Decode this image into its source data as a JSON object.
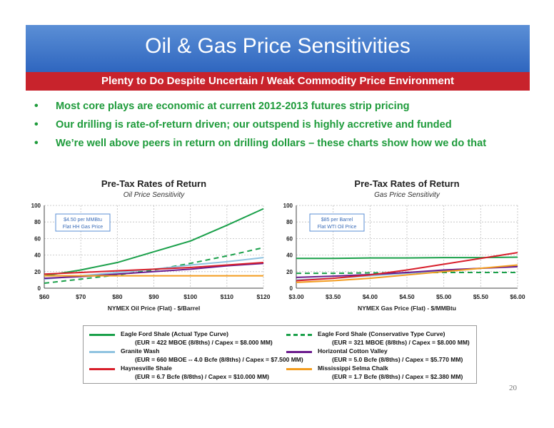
{
  "slide": {
    "title": "Oil & Gas Price Sensitivities",
    "subtitle": "Plenty to Do Despite Uncertain / Weak Commodity Price Environment",
    "bullets": [
      "Most core plays are economic at current 2012-2013 futures strip pricing",
      "Our drilling is rate-of-return driven; our outspend is highly accretive and funded",
      "We’re well above peers in return on drilling dollars – these charts show how we do that"
    ],
    "page_number": "20",
    "bullet_glyph": "•"
  },
  "series_styles": [
    {
      "name": "Eagle Ford Shale (Actual Type Curve)",
      "detail": "(EUR = 422 MBOE (8/8ths) / Capex = $8.000 MM)",
      "color": "#1aa04a",
      "dash": false
    },
    {
      "name": "Eagle Ford Shale (Conservative Type Curve)",
      "detail": "(EUR = 321 MBOE (8/8ths) / Capex = $8.000 MM)",
      "color": "#1aa04a",
      "dash": true
    },
    {
      "name": "Granite Wash",
      "detail": "(EUR = 660 MBOE -- 4.0 Bcfe (8/8ths) / Capex = $7.500 MM)",
      "color": "#8fc3e0",
      "dash": false
    },
    {
      "name": "Horizontal Cotton Valley",
      "detail": "(EUR = 5.0 Bcfe (8/8ths) / Capex = $5.770 MM)",
      "color": "#6a1a8c",
      "dash": false
    },
    {
      "name": "Haynesville Shale",
      "detail": "(EUR = 6.7 Bcfe (8/8ths) / Capex = $10.000 MM)",
      "color": "#d81e2a",
      "dash": false
    },
    {
      "name": "Mississippi Selma Chalk",
      "detail": "(EUR = 1.7 Bcfe (8/8ths) / Capex = $2.380 MM)",
      "color": "#f39c1e",
      "dash": false
    }
  ],
  "chart_data": [
    {
      "type": "line",
      "title": "Pre-Tax Rates of Return",
      "subtitle": "Oil Price Sensitivity",
      "xlabel": "NYMEX Oil Price (Flat) - $/Barrel",
      "ylabel": "",
      "x": [
        60,
        70,
        80,
        90,
        100,
        110,
        120
      ],
      "x_tick_labels": [
        "$60",
        "$70",
        "$80",
        "$90",
        "$100",
        "$110",
        "$120"
      ],
      "xlim": [
        60,
        120
      ],
      "ylim": [
        0,
        100
      ],
      "y_ticks": [
        0,
        20,
        40,
        60,
        80,
        100
      ],
      "y_tick_labels": [
        "0",
        "20",
        "40",
        "60",
        "80",
        "100"
      ],
      "grid": true,
      "annotation": [
        "$4.50 per MMBtu",
        "Flat HH Gas Price"
      ],
      "series": [
        {
          "name": "Eagle Ford Shale (Actual Type Curve)",
          "values": [
            15,
            22,
            31,
            44,
            57,
            76,
            96
          ]
        },
        {
          "name": "Eagle Ford Shale (Conservative Type Curve)",
          "values": [
            6,
            11,
            16,
            22,
            30,
            39,
            49
          ]
        },
        {
          "name": "Granite Wash",
          "values": [
            11,
            15,
            19,
            23,
            28,
            32,
            37
          ]
        },
        {
          "name": "Horizontal Cotton Valley",
          "values": [
            12,
            14,
            17,
            20,
            23,
            27,
            30
          ]
        },
        {
          "name": "Haynesville Shale",
          "values": [
            17,
            19,
            21,
            23,
            25,
            28,
            31
          ]
        },
        {
          "name": "Mississippi Selma Chalk",
          "values": [
            15,
            15,
            15,
            15,
            15,
            15,
            15
          ]
        }
      ]
    },
    {
      "type": "line",
      "title": "Pre-Tax Rates of Return",
      "subtitle": "Gas Price Sensitivity",
      "xlabel": "NYMEX Gas Price (Flat) - $/MMBtu",
      "ylabel": "",
      "x": [
        3.0,
        3.5,
        4.0,
        4.5,
        5.0,
        5.5,
        6.0
      ],
      "x_tick_labels": [
        "$3.00",
        "$3.50",
        "$4.00",
        "$4.50",
        "$5.00",
        "$5.50",
        "$6.00"
      ],
      "xlim": [
        3.0,
        6.0
      ],
      "ylim": [
        0,
        100
      ],
      "y_ticks": [
        0,
        20,
        40,
        60,
        80,
        100
      ],
      "y_tick_labels": [
        "0",
        "20",
        "40",
        "60",
        "80",
        "100"
      ],
      "grid": true,
      "annotation": [
        "$85 per Barrel",
        "Flat WTI Oil Price"
      ],
      "series": [
        {
          "name": "Eagle Ford Shale (Actual Type Curve)",
          "values": [
            36,
            36,
            36.5,
            36.5,
            37,
            37,
            37.5
          ]
        },
        {
          "name": "Eagle Ford Shale (Conservative Type Curve)",
          "values": [
            18,
            18,
            18.5,
            18.5,
            19,
            19,
            19
          ]
        },
        {
          "name": "Granite Wash",
          "values": [
            10,
            12,
            15,
            18,
            21,
            24,
            27
          ]
        },
        {
          "name": "Horizontal Cotton Valley",
          "values": [
            13,
            14.5,
            16.5,
            19,
            22,
            24,
            26
          ]
        },
        {
          "name": "Haynesville Shale",
          "values": [
            9,
            12,
            16,
            22,
            29,
            36,
            43
          ]
        },
        {
          "name": "Mississippi Selma Chalk",
          "values": [
            7,
            9,
            12,
            16,
            20,
            24,
            28
          ]
        }
      ]
    }
  ]
}
